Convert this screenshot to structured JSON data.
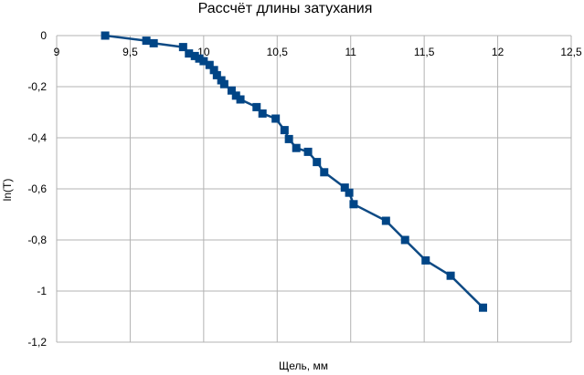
{
  "chart_data": {
    "type": "scatter",
    "title": "Рассчёт длины затухания",
    "xlabel": "Щель, мм",
    "ylabel": "ln(T)",
    "xlim": [
      9,
      12.5
    ],
    "ylim": [
      -1.2,
      0
    ],
    "x_ticks": [
      "9",
      "9,5",
      "10",
      "10,5",
      "11",
      "11,5",
      "12",
      "12,5"
    ],
    "y_ticks": [
      "0",
      "-0,2",
      "-0,4",
      "-0,6",
      "-0,8",
      "-1",
      "-1,2"
    ],
    "grid": true,
    "legend": "none",
    "line_color": "#0e4a84",
    "marker_color": "#004586",
    "series": [
      {
        "x": [
          9.33,
          9.61,
          9.66,
          9.86,
          9.9,
          9.94,
          9.97,
          10.0,
          10.04,
          10.07,
          10.09,
          10.12,
          10.14,
          10.19,
          10.22,
          10.25,
          10.36,
          10.4,
          10.49,
          10.55,
          10.58,
          10.63,
          10.71,
          10.77,
          10.82,
          10.96,
          10.99,
          11.02,
          11.24,
          11.37,
          11.51,
          11.68,
          11.9
        ],
        "y": [
          0.0,
          -0.02,
          -0.03,
          -0.045,
          -0.07,
          -0.08,
          -0.09,
          -0.1,
          -0.115,
          -0.135,
          -0.155,
          -0.175,
          -0.19,
          -0.215,
          -0.235,
          -0.25,
          -0.28,
          -0.305,
          -0.325,
          -0.37,
          -0.405,
          -0.44,
          -0.455,
          -0.495,
          -0.535,
          -0.595,
          -0.615,
          -0.66,
          -0.725,
          -0.8,
          -0.88,
          -0.94,
          -1.065
        ]
      }
    ]
  }
}
